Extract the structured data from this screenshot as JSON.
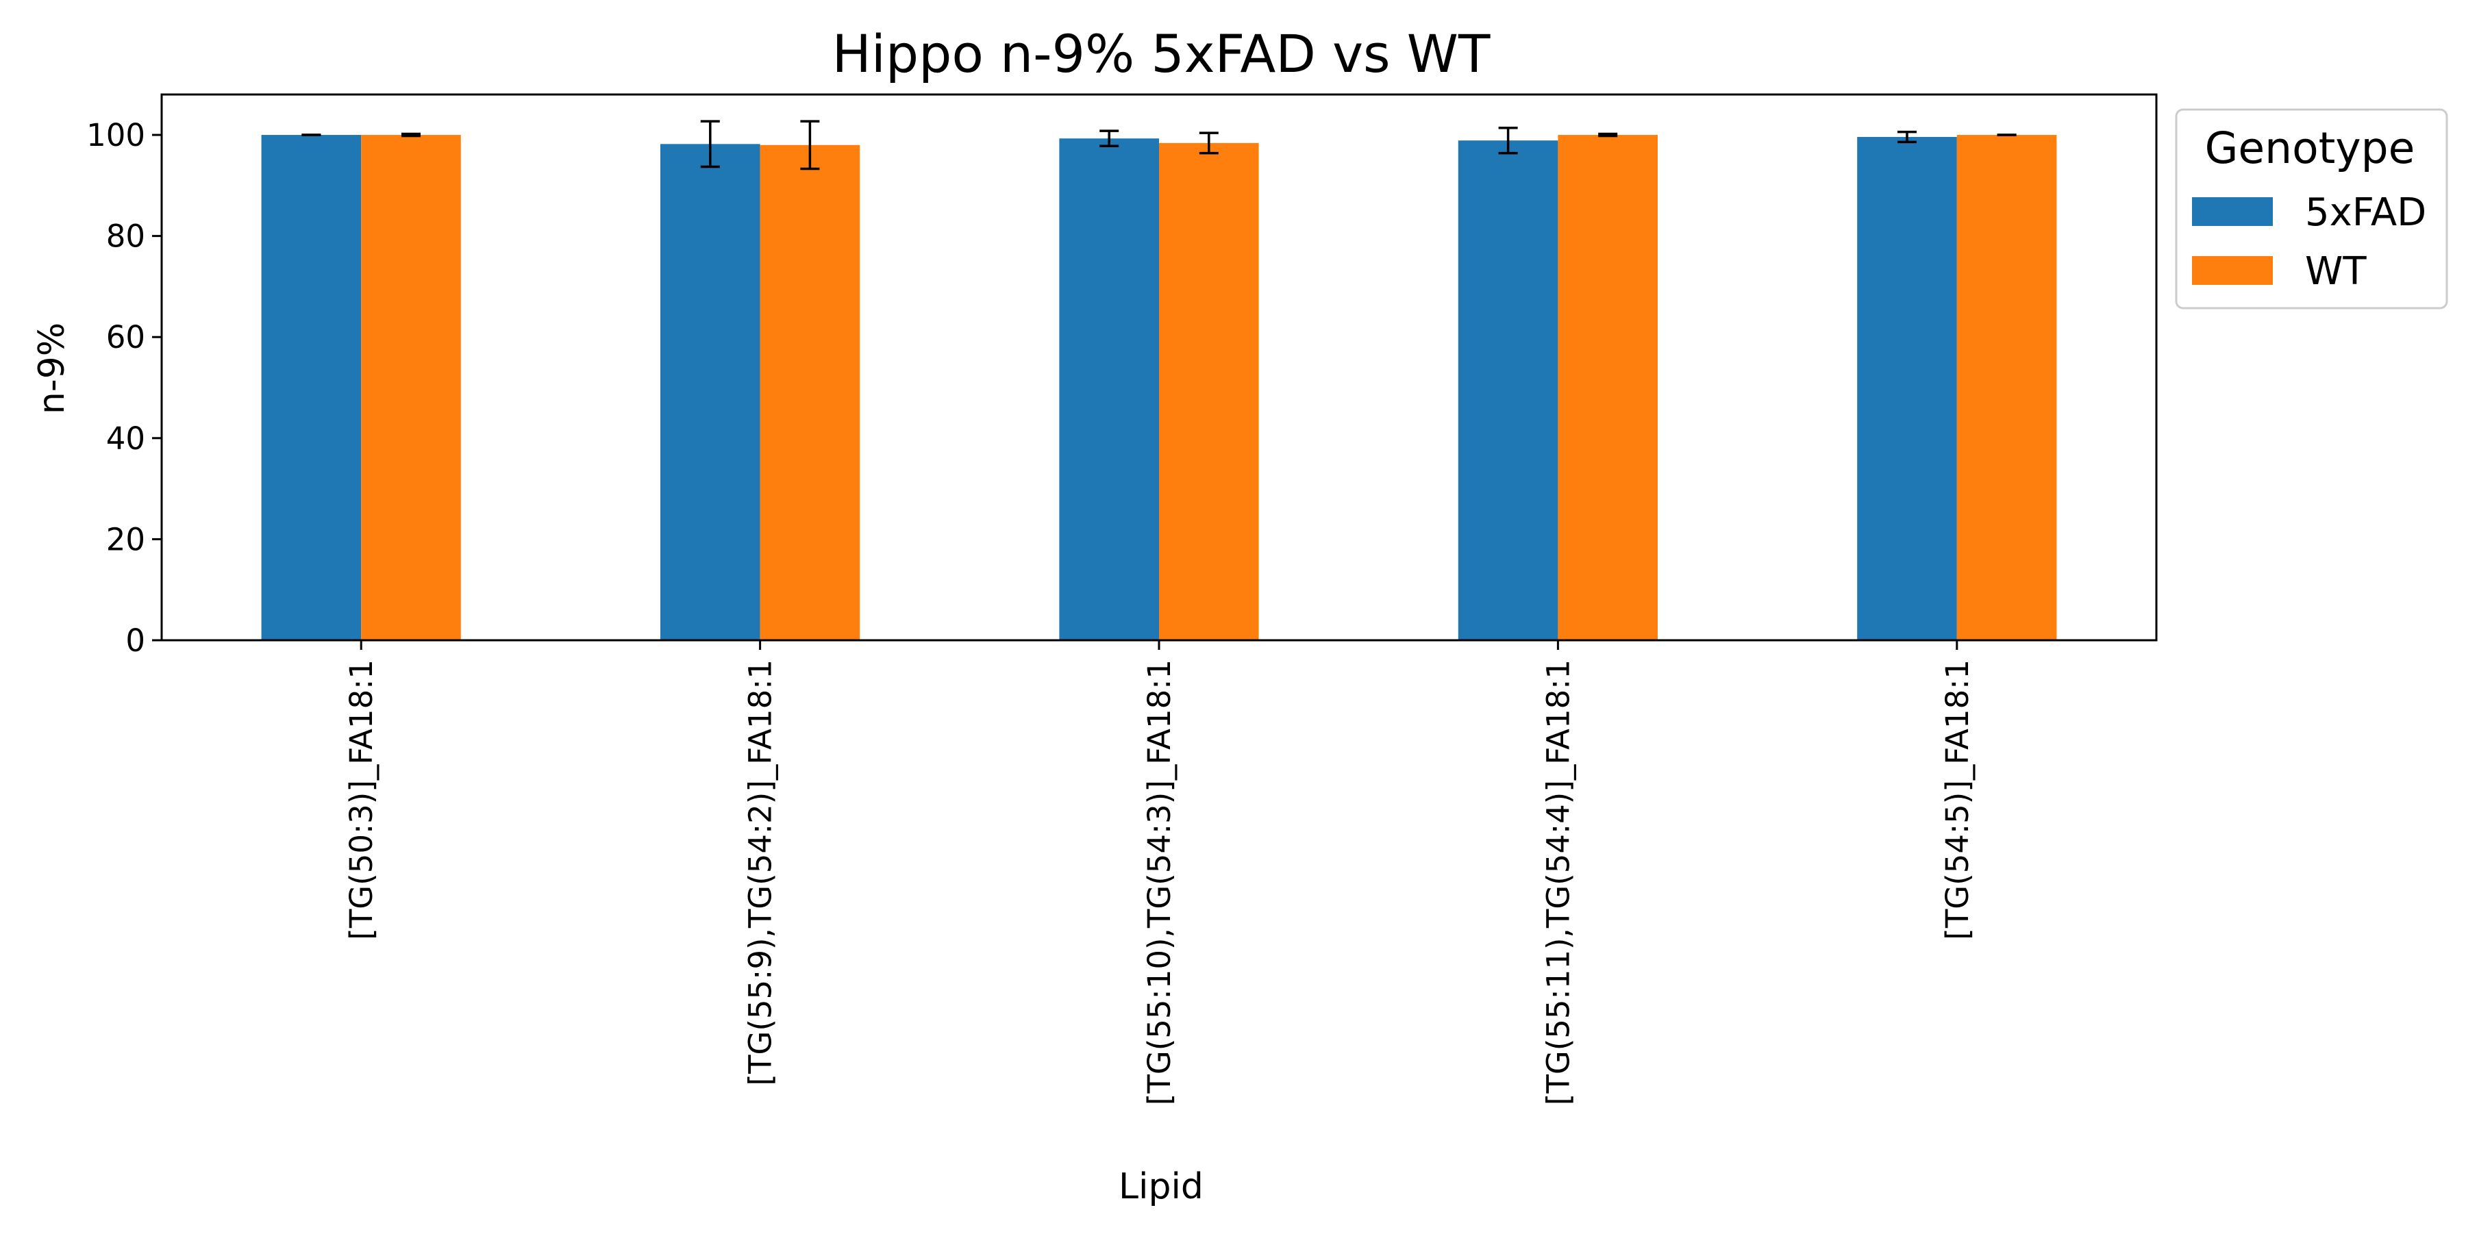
{
  "chart_data": {
    "type": "bar",
    "title": "Hippo n-9% 5xFAD vs WT",
    "xlabel": "Lipid",
    "ylabel": "n-9%",
    "ylim": [
      0,
      108
    ],
    "yticks": [
      0,
      20,
      40,
      60,
      80,
      100
    ],
    "grid": false,
    "legend": {
      "title": "Genotype",
      "placement": "outside-right-top"
    },
    "categories": [
      "[TG(50:3)]_FA18:1",
      "[TG(55:9),TG(54:2)]_FA18:1",
      "[TG(55:10),TG(54:3)]_FA18:1",
      "[TG(55:11),TG(54:4)]_FA18:1",
      "[TG(54:5)]_FA18:1"
    ],
    "series": [
      {
        "name": "5xFAD",
        "color": "#1f77b4",
        "values": [
          100.0,
          98.2,
          99.3,
          98.9,
          99.6
        ],
        "errors": [
          0.0,
          4.5,
          1.5,
          2.5,
          1.0
        ]
      },
      {
        "name": "WT",
        "color": "#ff7f0e",
        "values": [
          100.0,
          98.0,
          98.4,
          100.0,
          100.0
        ],
        "errors": [
          0.2,
          4.7,
          2.0,
          0.2,
          0.0
        ]
      }
    ]
  }
}
